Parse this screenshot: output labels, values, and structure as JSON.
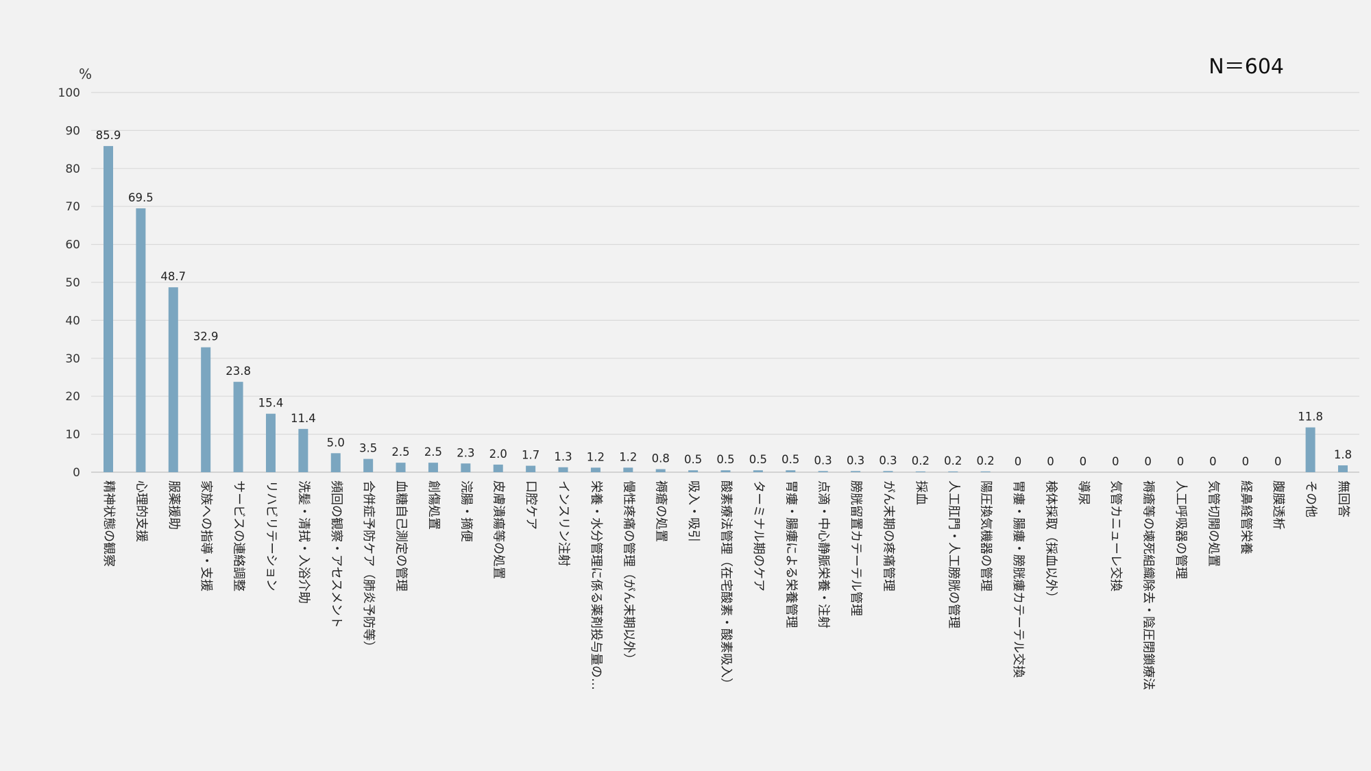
{
  "n_label": "N＝604",
  "chart_data": {
    "type": "bar",
    "title": "",
    "xlabel": "",
    "ylabel": "%",
    "ylim": [
      0,
      100
    ],
    "yticks": [
      0,
      10,
      20,
      30,
      40,
      50,
      60,
      70,
      80,
      90,
      100
    ],
    "grid": true,
    "bar_color": "#7ba6c0",
    "categories": [
      "精神状態の観察",
      "心理的支援",
      "服薬援助",
      "家族への指導・支援",
      "サービスの連絡調整",
      "リハビリテーション",
      "洗髪・清拭・入浴介助",
      "頻回の観察・アセスメント",
      "合併症予防ケア（肺炎予防等）",
      "血糖自己測定の管理",
      "創傷処置",
      "浣腸・摘便",
      "皮膚潰瘍等の処置",
      "口腔ケア",
      "インスリン注射",
      "栄養・水分管理に係る薬剤投与量の…",
      "慢性疼痛の管理（がん末期以外）",
      "褥瘡の処置",
      "吸入・吸引",
      "酸素療法管理（在宅酸素・酸素吸入）",
      "ターミナル期のケア",
      "胃瘻・腸瘻による栄養管理",
      "点滴・中心静脈栄養・注射",
      "膀胱留置カテーテル管理",
      "がん末期の疼痛管理",
      "採血",
      "人工肛門・人工膀胱の管理",
      "陽圧換気機器の管理",
      "胃瘻・腸瘻・膀胱瘻カテーテル交換",
      "検体採取（採血以外）",
      "導尿",
      "気管カニューレ交換",
      "褥瘡等の壊死組織除去・陰圧閉鎖療法",
      "人工呼吸器の管理",
      "気管切開の処置",
      "経鼻経管栄養",
      "腹膜透析",
      "その他",
      "無回答"
    ],
    "values": [
      85.9,
      69.5,
      48.7,
      32.9,
      23.8,
      15.4,
      11.4,
      5.0,
      3.5,
      2.5,
      2.5,
      2.3,
      2.0,
      1.7,
      1.3,
      1.2,
      1.2,
      0.8,
      0.5,
      0.5,
      0.5,
      0.5,
      0.3,
      0.3,
      0.3,
      0.2,
      0.2,
      0.2,
      0,
      0,
      0,
      0,
      0,
      0,
      0,
      0,
      0,
      11.8,
      1.8
    ],
    "value_labels": [
      "85.9",
      "69.5",
      "48.7",
      "32.9",
      "23.8",
      "15.4",
      "11.4",
      "5.0",
      "3.5",
      "2.5",
      "2.5",
      "2.3",
      "2.0",
      "1.7",
      "1.3",
      "1.2",
      "1.2",
      "0.8",
      "0.5",
      "0.5",
      "0.5",
      "0.5",
      "0.3",
      "0.3",
      "0.3",
      "0.2",
      "0.2",
      "0.2",
      "0",
      "0",
      "0",
      "0",
      "0",
      "0",
      "0",
      "0",
      "0",
      "11.8",
      "1.8"
    ]
  }
}
